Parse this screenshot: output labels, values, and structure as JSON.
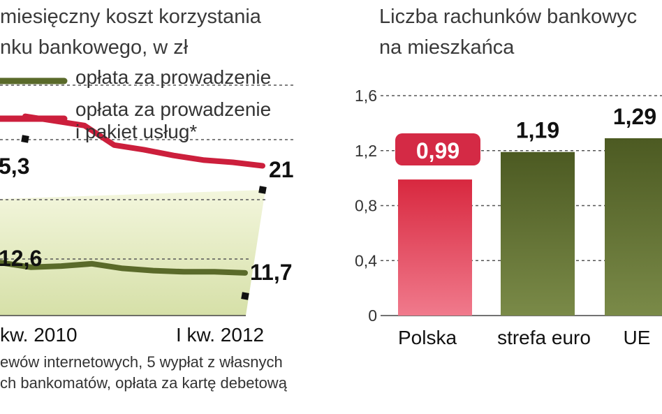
{
  "chart_data": [
    {
      "type": "line",
      "title": "miesięczny koszt korzystania\nnku bankowego, w zł",
      "title_lines": [
        "miesięczny koszt korzystania",
        "nku bankowego, w zł"
      ],
      "x_labels": [
        "kw. 2010",
        "I kw. 2012"
      ],
      "series": [
        {
          "name": "opłata za prowadzenie",
          "name_lines": [
            "opłata za prowadzenie"
          ],
          "color": "#5a6a2a",
          "values": [
            12.6,
            12.2,
            12.3,
            12.5,
            12.1,
            11.9,
            11.8,
            11.8,
            11.7
          ],
          "start_label": "12,6",
          "end_label": "11,7"
        },
        {
          "name": "opłata za prowadzenie i pakiet usług*",
          "name_lines": [
            "opłata za prowadzenie",
            "i pakiet usług*"
          ],
          "color": "#cc1f3c",
          "values": [
            25.3,
            24.9,
            24.5,
            22.8,
            22.4,
            21.9,
            21.5,
            21.3,
            21.0
          ],
          "start_label": "5,3",
          "end_label": "21"
        }
      ],
      "ylim": [
        8,
        28
      ],
      "note_lines": [
        "ewów internetowych, 5 wypłat z własnych",
        "ch bankomatów, opłata za kartę debetową"
      ]
    },
    {
      "type": "bar",
      "title": "Liczba rachunków bankowyc\nna mieszkańca",
      "title_lines": [
        "Liczba rachunków bankowyc",
        "na mieszkańca"
      ],
      "categories": [
        "Polska",
        "strefa euro",
        "UE"
      ],
      "values": [
        0.99,
        1.19,
        1.29
      ],
      "value_labels": [
        "0,99",
        "1,19",
        "1,29"
      ],
      "colors": [
        "#d42a45",
        "#5a6a2a",
        "#5a6a2a"
      ],
      "highlight": "Polska",
      "ylim": [
        0,
        1.6
      ],
      "y_ticks": [
        0,
        0.4,
        0.8,
        1.2,
        1.6
      ],
      "y_tick_labels": [
        "0",
        "0,4",
        "0,8",
        "1,2",
        "1,6"
      ],
      "grid": true
    }
  ]
}
